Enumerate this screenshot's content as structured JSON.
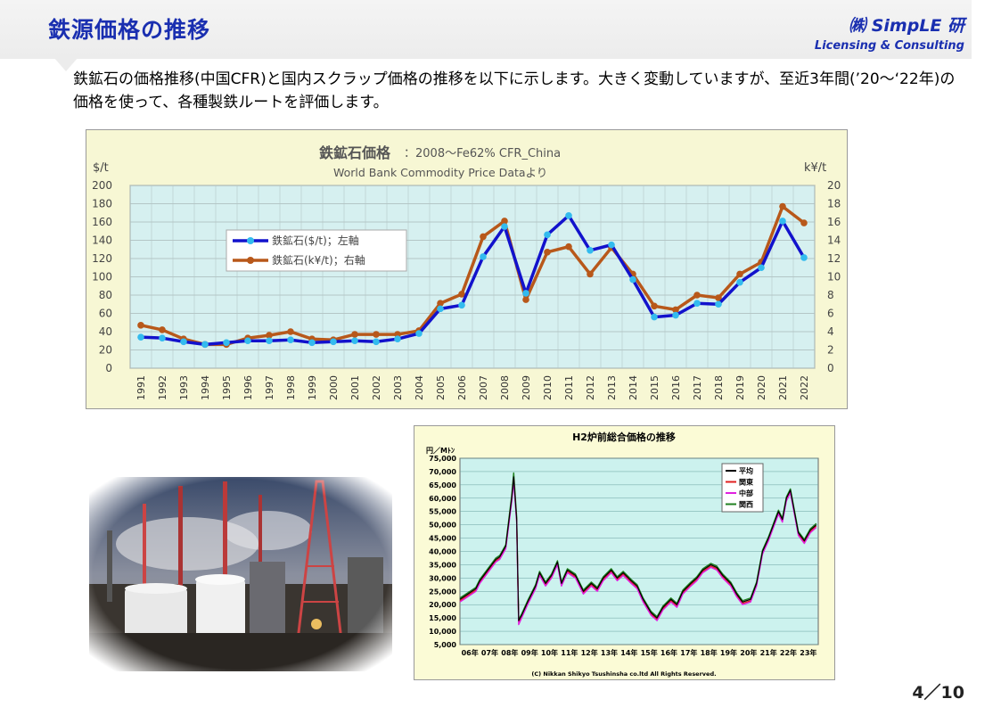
{
  "header": {
    "title": "鉄源価格の推移",
    "brand_name": "㈱ SimpLE 研",
    "brand_sub": "Licensing & Consulting"
  },
  "intro_text": "鉄鉱石の価格推移(中国CFR)と国内スクラップ価格の推移を以下に示します。大きく変動していますが、至近3年間(’20～‘22年)の価格を使って、各種製鉄ルートを評価します。",
  "page_number": "4／10",
  "colors": {
    "title_blue": "#1a2fb0",
    "iron_usd": "#1212cc",
    "iron_usd_marker": "#33bbee",
    "iron_kyen": "#b8581a",
    "chart1_bg": "#f7f7d4",
    "chart1_plot": "#d6f0f0",
    "chart2_bg": "#fbfbd6",
    "chart2_plot": "#ccf2ee"
  },
  "chart_data": [
    {
      "type": "line",
      "title": "鉄鉱石価格：2008～Fe62% CFR_China",
      "title_main": "鉄鉱石価格",
      "title_suffix": "：2008～Fe62% CFR_China",
      "subtitle": "World Bank Commodity Price Dataより",
      "ylabel": "$/t",
      "y2label": "k¥/t",
      "ylim": [
        0,
        200
      ],
      "y2lim": [
        0,
        20
      ],
      "yticks": [
        "200",
        "180",
        "160",
        "140",
        "120",
        "100",
        "80",
        "60",
        "40",
        "20",
        "0"
      ],
      "y2ticks": [
        "20",
        "18",
        "16",
        "14",
        "12",
        "10",
        "8",
        "6",
        "4",
        "2",
        "0"
      ],
      "grid": true,
      "legend_position": "upper-left",
      "categories": [
        "1991",
        "1992",
        "1993",
        "1994",
        "1995",
        "1996",
        "1997",
        "1998",
        "1999",
        "2000",
        "2001",
        "2002",
        "2003",
        "2004",
        "2005",
        "2006",
        "2007",
        "2008",
        "2009",
        "2010",
        "2011",
        "2012",
        "2013",
        "2014",
        "2015",
        "2016",
        "2017",
        "2018",
        "2019",
        "2020",
        "2021",
        "2022"
      ],
      "series": [
        {
          "name": "鉄鉱石($/t)；左軸",
          "axis": "left",
          "values": [
            34,
            33,
            29,
            26,
            28,
            30,
            30,
            31,
            28,
            29,
            30,
            29,
            32,
            38,
            65,
            69,
            122,
            155,
            82,
            146,
            167,
            129,
            135,
            97,
            56,
            58,
            71,
            70,
            94,
            110,
            161,
            121
          ]
        },
        {
          "name": "鉄鉱石(k¥/t)；右軸",
          "axis": "right",
          "values": [
            4.7,
            4.2,
            3.2,
            2.6,
            2.6,
            3.3,
            3.6,
            4.0,
            3.2,
            3.1,
            3.7,
            3.7,
            3.7,
            4.1,
            7.1,
            8.1,
            14.4,
            16.1,
            7.5,
            12.7,
            13.3,
            10.3,
            13.2,
            10.3,
            6.8,
            6.4,
            8.0,
            7.7,
            10.3,
            11.6,
            17.7,
            15.9
          ]
        }
      ]
    },
    {
      "type": "line",
      "title": "H2炉前総合価格の推移",
      "ylabel": "円／Mﾄﾝ",
      "ylim": [
        5000,
        75000
      ],
      "yticks": [
        "75,000",
        "70,000",
        "65,000",
        "60,000",
        "55,000",
        "50,000",
        "45,000",
        "40,000",
        "35,000",
        "30,000",
        "25,000",
        "20,000",
        "15,000",
        "10,000",
        "5,000"
      ],
      "xtick_labels": [
        "06年",
        "07年",
        "08年",
        "09年",
        "10年",
        "11年",
        "12年",
        "13年",
        "14年",
        "15年",
        "16年",
        "17年",
        "18年",
        "19年",
        "20年",
        "21年",
        "22年",
        "23年"
      ],
      "x": [
        2006.0,
        2006.4,
        2006.8,
        2007.0,
        2007.4,
        2007.8,
        2008.0,
        2008.3,
        2008.6,
        2008.7,
        2008.85,
        2008.95,
        2009.1,
        2009.4,
        2009.8,
        2010.0,
        2010.3,
        2010.6,
        2010.9,
        2011.1,
        2011.4,
        2011.8,
        2012.2,
        2012.6,
        2012.9,
        2013.2,
        2013.6,
        2013.9,
        2014.2,
        2014.6,
        2014.9,
        2015.2,
        2015.6,
        2015.9,
        2016.2,
        2016.6,
        2016.9,
        2017.2,
        2017.6,
        2017.9,
        2018.2,
        2018.6,
        2018.9,
        2019.2,
        2019.6,
        2019.9,
        2020.2,
        2020.6,
        2020.9,
        2021.2,
        2021.5,
        2021.8,
        2022.0,
        2022.2,
        2022.4,
        2022.6,
        2022.8,
        2023.0,
        2023.3,
        2023.6,
        2023.9
      ],
      "series": [
        {
          "name": "平均",
          "values": [
            22000,
            24000,
            26000,
            29000,
            33000,
            37000,
            38000,
            42000,
            60000,
            68000,
            52000,
            14000,
            16000,
            21000,
            27000,
            32000,
            28000,
            31000,
            36000,
            28000,
            33000,
            31000,
            25000,
            28000,
            26000,
            30000,
            33000,
            30000,
            32000,
            29000,
            27000,
            22000,
            17000,
            15000,
            19000,
            22000,
            20000,
            25000,
            28000,
            30000,
            33000,
            35000,
            34000,
            31000,
            28000,
            24000,
            21000,
            22000,
            28000,
            40000,
            45000,
            51000,
            55000,
            52000,
            60000,
            63000,
            55000,
            47000,
            44000,
            48000,
            50000
          ]
        },
        {
          "name": "関東",
          "values": [
            21500,
            23500,
            25500,
            28500,
            32500,
            36500,
            37500,
            41500,
            59500,
            67500,
            51500,
            13500,
            15500,
            20500,
            26500,
            31500,
            27500,
            30500,
            35500,
            27500,
            32500,
            30500,
            24500,
            27500,
            25500,
            29500,
            32500,
            29500,
            31500,
            28500,
            26500,
            21500,
            16500,
            14500,
            18500,
            21500,
            19500,
            24500,
            27500,
            29500,
            32500,
            34500,
            33500,
            30500,
            27500,
            23500,
            20500,
            21500,
            27500,
            39500,
            44500,
            50500,
            54500,
            51500,
            59500,
            62500,
            54500,
            46500,
            43500,
            47500,
            49500
          ]
        },
        {
          "name": "中部",
          "values": [
            21000,
            23000,
            25000,
            28000,
            32000,
            36000,
            37000,
            41000,
            58500,
            66500,
            51000,
            12500,
            15000,
            20000,
            26000,
            31000,
            27000,
            30000,
            35000,
            27000,
            32000,
            30000,
            24000,
            27000,
            25000,
            29000,
            32000,
            29000,
            31000,
            28000,
            26000,
            21000,
            16000,
            14000,
            18000,
            21000,
            19000,
            24000,
            27000,
            29000,
            32000,
            34000,
            33000,
            30000,
            27000,
            23000,
            20000,
            21000,
            27000,
            39000,
            44000,
            50000,
            54000,
            51000,
            59000,
            62000,
            54000,
            46000,
            43000,
            47000,
            49000
          ]
        },
        {
          "name": "関西",
          "values": [
            22500,
            24500,
            26500,
            29500,
            33500,
            37500,
            38500,
            42500,
            61000,
            69500,
            53000,
            14500,
            16500,
            21500,
            27500,
            32500,
            28500,
            31500,
            36500,
            28500,
            33500,
            31500,
            25500,
            28500,
            26500,
            30500,
            33500,
            30500,
            32500,
            29500,
            27500,
            22500,
            17500,
            15500,
            19500,
            22500,
            20500,
            25500,
            28500,
            30500,
            33500,
            35500,
            34500,
            31500,
            28500,
            24500,
            21500,
            22500,
            28500,
            40500,
            45500,
            51500,
            55500,
            52500,
            60500,
            63500,
            55500,
            47500,
            44500,
            48500,
            50500
          ]
        }
      ],
      "series_colors": [
        "#000000",
        "#e02020",
        "#e020e0",
        "#208020"
      ],
      "footer": "(C) Nikkan Shikyo Tsushinsha co.ltd All Rights Reserved.",
      "legend_position": "upper-right"
    }
  ]
}
